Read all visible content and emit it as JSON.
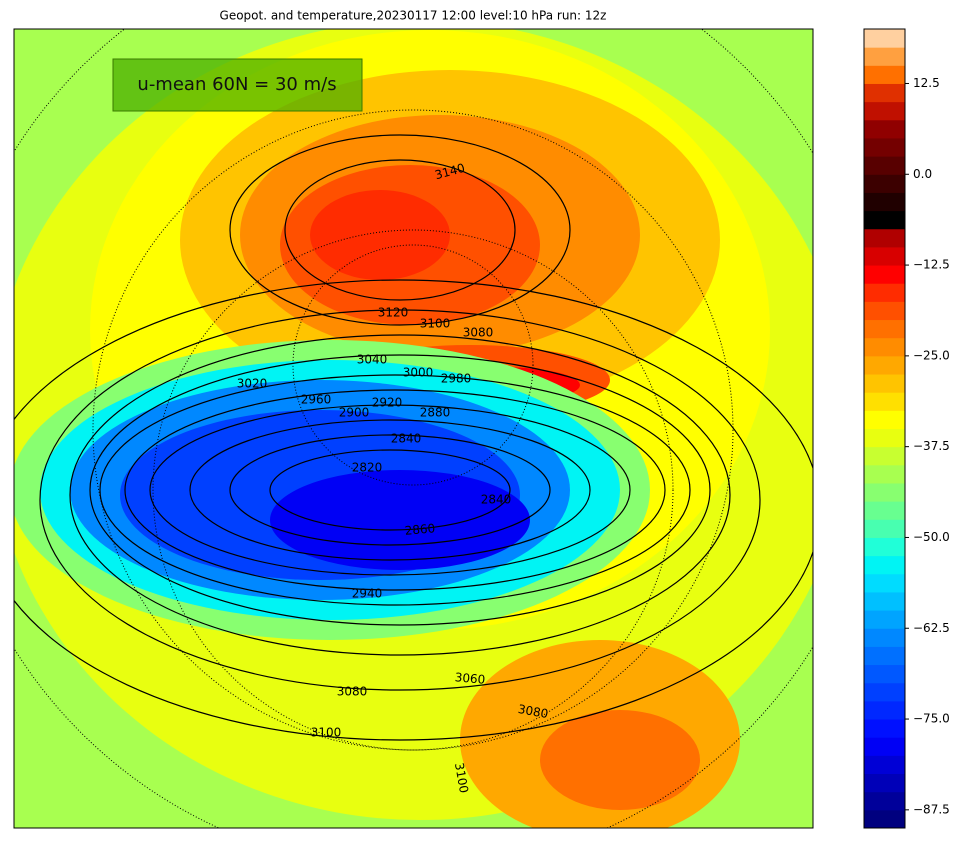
{
  "chart_data": {
    "type": "contour-map",
    "title": "Geopot. and temperature,20230117 12:00 level:10 hPa run: 12z",
    "annotation": "u-mean 60N = 30 m/s",
    "contour_labels": [
      3140,
      3120,
      3100,
      3080,
      3040,
      3020,
      3000,
      2980,
      2960,
      2920,
      2900,
      2880,
      2840,
      2820,
      2840,
      2860,
      2940,
      3060,
      3080,
      3080,
      3100,
      3100
    ],
    "clim": [
      -90,
      20
    ],
    "cticks": [
      12.5,
      {
        "value": 0,
        "label": "0.0"
      },
      {
        "value": -12.5,
        "label": "−12.5"
      },
      {
        "value": -25,
        "label": "−25.0"
      },
      {
        "value": -37.5,
        "label": "−37.5"
      },
      {
        "value": -50,
        "label": "−50.0"
      },
      {
        "value": -62.5,
        "label": "−62.5"
      },
      {
        "value": -75,
        "label": "−75.0"
      },
      {
        "value": -87.5,
        "label": "−87.5"
      }
    ],
    "colors": [
      "#00007f",
      "#00009a",
      "#0000b8",
      "#0000d6",
      "#0000f5",
      "#0010ff",
      "#0028ff",
      "#0040ff",
      "#0058ff",
      "#0070ff",
      "#0088ff",
      "#00a4ff",
      "#00c0ff",
      "#00dcff",
      "#00f4f4",
      "#20ffd8",
      "#48ffb0",
      "#68ff90",
      "#88ff70",
      "#a8ff50",
      "#c8ff30",
      "#e8ff10",
      "#ffff00",
      "#ffe000",
      "#ffc400",
      "#ffa800",
      "#ff8c00",
      "#ff7000",
      "#ff5000",
      "#ff2c00",
      "#ff0000",
      "#d80000",
      "#b00000",
      "#000000",
      "#200000",
      "#3c0000",
      "#580000",
      "#740000",
      "#900000",
      "#c01000",
      "#e03000",
      "#ff7000",
      "#ffa040",
      "#ffd0a0"
    ]
  }
}
